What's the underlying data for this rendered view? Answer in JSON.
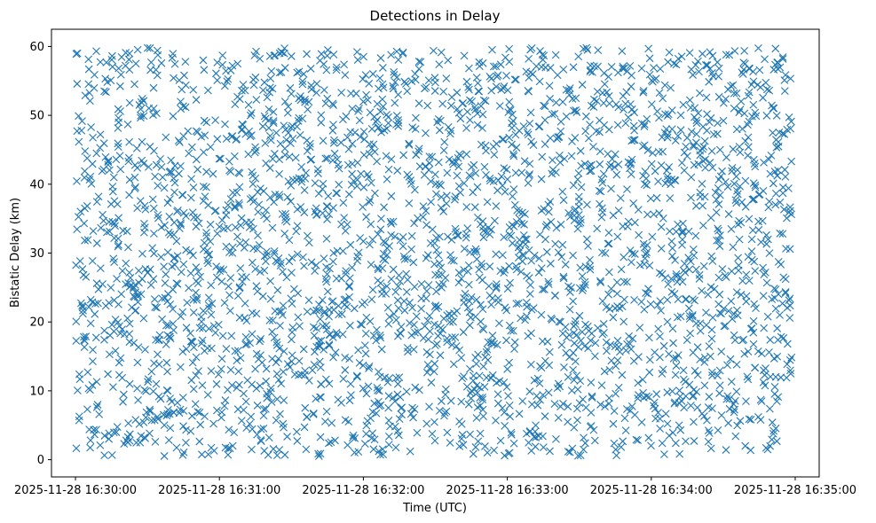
{
  "chart_data": {
    "type": "scatter",
    "title": "Detections in Delay",
    "xlabel": "Time (UTC)",
    "ylabel": "Bistatic Delay (km)",
    "x_unit": "seconds after 2025-11-28 16:30:00 UTC",
    "xlim": [
      -10,
      310
    ],
    "ylim": [
      -2.5,
      62.5
    ],
    "xticks": [
      {
        "value": 0,
        "label": "2025-11-28 16:30:00"
      },
      {
        "value": 60,
        "label": "2025-11-28 16:31:00"
      },
      {
        "value": 120,
        "label": "2025-11-28 16:32:00"
      },
      {
        "value": 180,
        "label": "2025-11-28 16:33:00"
      },
      {
        "value": 240,
        "label": "2025-11-28 16:34:00"
      },
      {
        "value": 300,
        "label": "2025-11-28 16:35:00"
      }
    ],
    "yticks": [
      {
        "value": 0,
        "label": "0"
      },
      {
        "value": 10,
        "label": "10"
      },
      {
        "value": 20,
        "label": "20"
      },
      {
        "value": 30,
        "label": "30"
      },
      {
        "value": 40,
        "label": "40"
      },
      {
        "value": 50,
        "label": "50"
      },
      {
        "value": 60,
        "label": "60"
      }
    ],
    "grid": false,
    "marker": "x",
    "series": [
      {
        "name": "detections",
        "color": "#1f77b4",
        "x_range": [
          0.2,
          298.5
        ],
        "y_range": [
          0.5,
          59.8
        ],
        "approx_count": 3000,
        "points": [
          [
            0.8,
            59.0
          ],
          [
            2.5,
            47.8
          ],
          [
            3.1,
            21.2
          ],
          [
            5.6,
            56.7
          ],
          [
            6.2,
            41.1
          ],
          [
            7.4,
            33.2
          ],
          [
            8.9,
            25.6
          ],
          [
            10.3,
            2.1
          ],
          [
            12.0,
            53.5
          ],
          [
            14.2,
            15.3
          ],
          [
            17.5,
            37.1
          ],
          [
            19.8,
            8.4
          ],
          [
            22.3,
            58.1
          ],
          [
            25.6,
            45.2
          ],
          [
            27.9,
            29.9
          ],
          [
            30.4,
            11.7
          ],
          [
            33.8,
            50.3
          ],
          [
            36.1,
            20.4
          ],
          [
            39.5,
            4.6
          ],
          [
            42.7,
            36.2
          ],
          [
            45.3,
            55.8
          ],
          [
            48.9,
            14.1
          ],
          [
            51.2,
            27.3
          ],
          [
            54.6,
            41.8
          ],
          [
            57.8,
            1.3
          ],
          [
            61.3,
            58.7
          ],
          [
            64.2,
            23.9
          ],
          [
            67.5,
            32.4
          ],
          [
            70.1,
            9.6
          ],
          [
            73.4,
            47.1
          ],
          [
            76.8,
            17.2
          ],
          [
            79.9,
            52.6
          ],
          [
            83.2,
            38.5
          ],
          [
            86.5,
            5.2
          ],
          [
            89.1,
            28.8
          ],
          [
            92.4,
            56.2
          ],
          [
            95.7,
            12.9
          ],
          [
            98.3,
            43.6
          ],
          [
            101.6,
            21.7
          ],
          [
            104.9,
            34.9
          ],
          [
            108.2,
            2.8
          ],
          [
            111.5,
            49.4
          ],
          [
            114.1,
            25.1
          ],
          [
            117.4,
            59.2
          ],
          [
            120.7,
            16.6
          ],
          [
            123.3,
            40.2
          ],
          [
            126.6,
            7.8
          ],
          [
            129.9,
            30.7
          ],
          [
            132.5,
            53.9
          ],
          [
            135.8,
            19.3
          ],
          [
            139.1,
            45.7
          ],
          [
            142.4,
            3.9
          ],
          [
            145.0,
            36.8
          ],
          [
            148.3,
            11.2
          ],
          [
            151.6,
            57.4
          ],
          [
            154.2,
            26.4
          ],
          [
            157.5,
            42.9
          ],
          [
            160.8,
            14.8
          ],
          [
            163.4,
            33.6
          ],
          [
            166.7,
            50.8
          ],
          [
            170.0,
            6.3
          ],
          [
            173.3,
            22.5
          ],
          [
            175.9,
            39.1
          ],
          [
            179.2,
            58.4
          ],
          [
            182.5,
            18.7
          ],
          [
            185.1,
            31.9
          ],
          [
            188.4,
            47.5
          ],
          [
            191.7,
            1.9
          ],
          [
            194.3,
            27.8
          ],
          [
            197.6,
            54.3
          ],
          [
            200.9,
            10.4
          ],
          [
            203.5,
            37.7
          ],
          [
            206.8,
            44.1
          ],
          [
            210.1,
            20.9
          ],
          [
            213.4,
            59.5
          ],
          [
            216.0,
            4.3
          ],
          [
            219.3,
            35.2
          ],
          [
            222.6,
            51.7
          ],
          [
            225.2,
            13.6
          ],
          [
            228.5,
            29.4
          ],
          [
            231.8,
            46.3
          ],
          [
            234.4,
            8.9
          ],
          [
            237.7,
            24.2
          ],
          [
            241.0,
            56.9
          ],
          [
            243.6,
            17.9
          ],
          [
            246.9,
            40.7
          ],
          [
            250.2,
            2.4
          ],
          [
            252.8,
            33.1
          ],
          [
            256.1,
            52.2
          ],
          [
            259.4,
            12.3
          ],
          [
            262.0,
            28.1
          ],
          [
            265.3,
            44.8
          ],
          [
            268.6,
            21.3
          ],
          [
            271.2,
            58.8
          ],
          [
            274.5,
            6.9
          ],
          [
            277.8,
            37.4
          ],
          [
            280.4,
            15.7
          ],
          [
            283.7,
            49.9
          ],
          [
            287.0,
            26.9
          ],
          [
            289.6,
            41.5
          ],
          [
            292.9,
            9.1
          ],
          [
            295.5,
            55.1
          ],
          [
            297.8,
            23.4
          ],
          [
            298.4,
            43.3
          ],
          [
            1.6,
            12.4
          ],
          [
            3.9,
            36.5
          ],
          [
            15.8,
            29.2
          ],
          [
            28.4,
            52.1
          ],
          [
            40.6,
            24.7
          ],
          [
            52.9,
            10.8
          ],
          [
            65.1,
            46.9
          ],
          [
            77.4,
            2.7
          ],
          [
            89.8,
            39.8
          ],
          [
            102.2,
            13.4
          ],
          [
            114.6,
            31.2
          ],
          [
            126.9,
            55.4
          ],
          [
            139.3,
            22.8
          ],
          [
            151.8,
            7.1
          ],
          [
            164.2,
            41.3
          ],
          [
            176.6,
            19.8
          ],
          [
            188.9,
            58.2
          ],
          [
            201.3,
            30.1
          ],
          [
            213.7,
            16.2
          ],
          [
            226.1,
            48.6
          ],
          [
            238.4,
            35.6
          ],
          [
            250.8,
            25.8
          ],
          [
            263.2,
            5.7
          ],
          [
            275.6,
            53.2
          ],
          [
            288.0,
            32.6
          ],
          [
            296.4,
            11.9
          ]
        ]
      }
    ]
  }
}
